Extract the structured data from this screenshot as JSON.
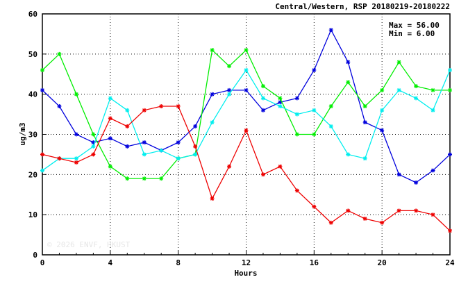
{
  "chart_data": {
    "type": "line",
    "title": "Central/Western, RSP 20180219-20180222",
    "xlabel": "Hours",
    "ylabel": "ug/m3",
    "xlim": [
      0,
      24
    ],
    "ylim": [
      0,
      60
    ],
    "xticks": [
      0,
      4,
      8,
      12,
      16,
      20,
      24
    ],
    "yticks": [
      0,
      10,
      20,
      30,
      40,
      50,
      60
    ],
    "grid": true,
    "legend": "none",
    "stats": {
      "max_label": "Max = 56.00",
      "min_label": "Min = 6.00"
    },
    "watermark": "© 2026 ENVF, HKUST",
    "x": [
      0,
      1,
      2,
      3,
      4,
      5,
      6,
      7,
      8,
      9,
      10,
      11,
      12,
      13,
      14,
      15,
      16,
      17,
      18,
      19,
      20,
      21,
      22,
      23,
      24
    ],
    "series": [
      {
        "color": "#0000dd",
        "values": [
          41,
          37,
          30,
          28,
          29,
          27,
          28,
          26,
          28,
          32,
          40,
          41,
          41,
          36,
          38,
          39,
          46,
          56,
          48,
          33,
          31,
          20,
          18,
          21,
          25
        ]
      },
      {
        "color": "#00ee00",
        "values": [
          46,
          50,
          40,
          30,
          22,
          19,
          19,
          19,
          24,
          25,
          51,
          47,
          51,
          42,
          39,
          30,
          30,
          37,
          43,
          37,
          41,
          48,
          42,
          41,
          41
        ]
      },
      {
        "color": "#00eeee",
        "values": [
          21,
          24,
          24,
          27,
          39,
          36,
          25,
          26,
          24,
          25,
          33,
          40,
          46,
          39,
          37,
          35,
          36,
          32,
          25,
          24,
          36,
          41,
          39,
          36,
          46
        ]
      },
      {
        "color": "#ee0000",
        "values": [
          25,
          24,
          23,
          25,
          34,
          32,
          36,
          37,
          37,
          27,
          14,
          22,
          31,
          20,
          22,
          16,
          12,
          8,
          11,
          9,
          8,
          11,
          11,
          10,
          6
        ]
      }
    ]
  }
}
